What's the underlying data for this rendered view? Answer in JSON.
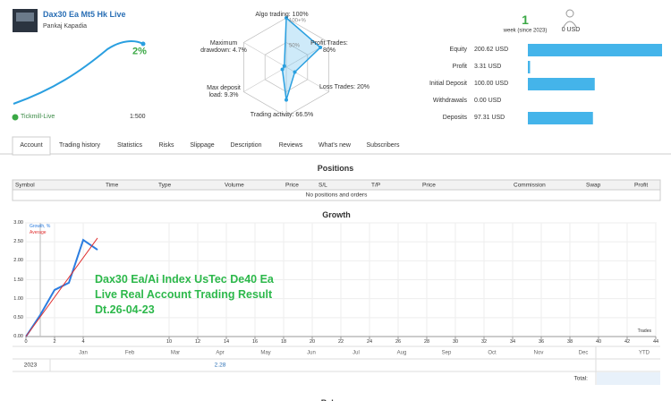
{
  "header": {
    "title": "Dax30 Ea Mt5 Hk Live",
    "author": "Pankaj Kapadia",
    "growth_label": "2%",
    "broker": "Tickmill-Live",
    "leverage": "1:500"
  },
  "radar": {
    "axes": [
      {
        "label": "Algo trading: 100%",
        "value": 100
      },
      {
        "label": "Profit Trades: 80%",
        "value": 80
      },
      {
        "label": "Loss Trades: 20%",
        "value": 20
      },
      {
        "label": "Trading activity: 66.5%",
        "value": 66.5
      },
      {
        "label": "Max deposit load: 9.3%",
        "value": 9.3
      },
      {
        "label": "Maximum drawdown: 4.7%",
        "value": 4.7
      }
    ],
    "scale": [
      {
        "value": 100,
        "label": "100+%"
      },
      {
        "value": 50,
        "label": "50%"
      }
    ]
  },
  "weeks": {
    "value": "1",
    "label": "week (since 2023)"
  },
  "subscription": "0 USD",
  "stats": [
    {
      "label": "Equity",
      "value": 200.62,
      "value_label": "200.62 USD"
    },
    {
      "label": "Profit",
      "value": 3.31,
      "value_label": "3.31 USD"
    },
    {
      "label": "Initial Deposit",
      "value": 100.0,
      "value_label": "100.00 USD"
    },
    {
      "label": "Withdrawals",
      "value": 0,
      "value_label": "0.00 USD"
    },
    {
      "label": "Deposits",
      "value": 97.31,
      "value_label": "97.31 USD"
    }
  ],
  "tabs": [
    "Account",
    "Trading history",
    "Statistics",
    "Risks",
    "Slippage",
    "Description",
    "Reviews",
    "What's new",
    "Subscribers"
  ],
  "positions": {
    "title": "Positions",
    "columns": [
      "Symbol",
      "Time",
      "Type",
      "Volume",
      "Price",
      "S/L",
      "T/P",
      "Price",
      "Commission",
      "Swap",
      "Profit"
    ],
    "empty": "No positions and orders"
  },
  "growth": {
    "title": "Growth",
    "type": "line",
    "x_label": "Trades",
    "xlim": [
      0,
      44
    ],
    "ylim": [
      0,
      3
    ],
    "xticks": [
      0,
      2,
      4,
      10,
      12,
      14,
      16,
      18,
      20,
      22,
      24,
      26,
      28,
      30,
      32,
      34,
      36,
      38,
      40,
      42,
      44
    ],
    "yticks": [
      {
        "value": 0,
        "label": "0.00"
      },
      {
        "value": 0.5,
        "label": "0.50"
      },
      {
        "value": 1,
        "label": "1.00"
      },
      {
        "value": 1.5,
        "label": "1.50"
      },
      {
        "value": 2,
        "label": "2.00"
      },
      {
        "value": 2.5,
        "label": "2.50"
      },
      {
        "value": 3,
        "label": "3.00"
      }
    ],
    "grid": true,
    "series": [
      {
        "name": "Growth, %",
        "color": "#2b7de0",
        "x": [
          0,
          1,
          2,
          3,
          4,
          5
        ],
        "values": [
          0,
          0.57,
          1.23,
          1.42,
          2.55,
          2.29
        ]
      },
      {
        "name": "Average",
        "color": "#e03030",
        "x": [
          0,
          5
        ],
        "values": [
          0,
          2.6
        ]
      }
    ],
    "annotation": [
      "Dax30 Ea/Ai Index UsTec De40 Ea",
      "Live Real Account Trading Result",
      "Dt.26-04-23"
    ]
  },
  "year_table": {
    "months": [
      "Jan",
      "Feb",
      "Mar",
      "Apr",
      "May",
      "Jun",
      "Jul",
      "Aug",
      "Sep",
      "Oct",
      "Nov",
      "Dec"
    ],
    "ytd": "YTD",
    "rows": [
      {
        "year": "2023",
        "values": [
          null,
          null,
          null,
          2.28,
          null,
          null,
          null,
          null,
          null,
          null,
          null,
          null
        ]
      }
    ],
    "total": "Total:"
  },
  "next_section": "Balance"
}
